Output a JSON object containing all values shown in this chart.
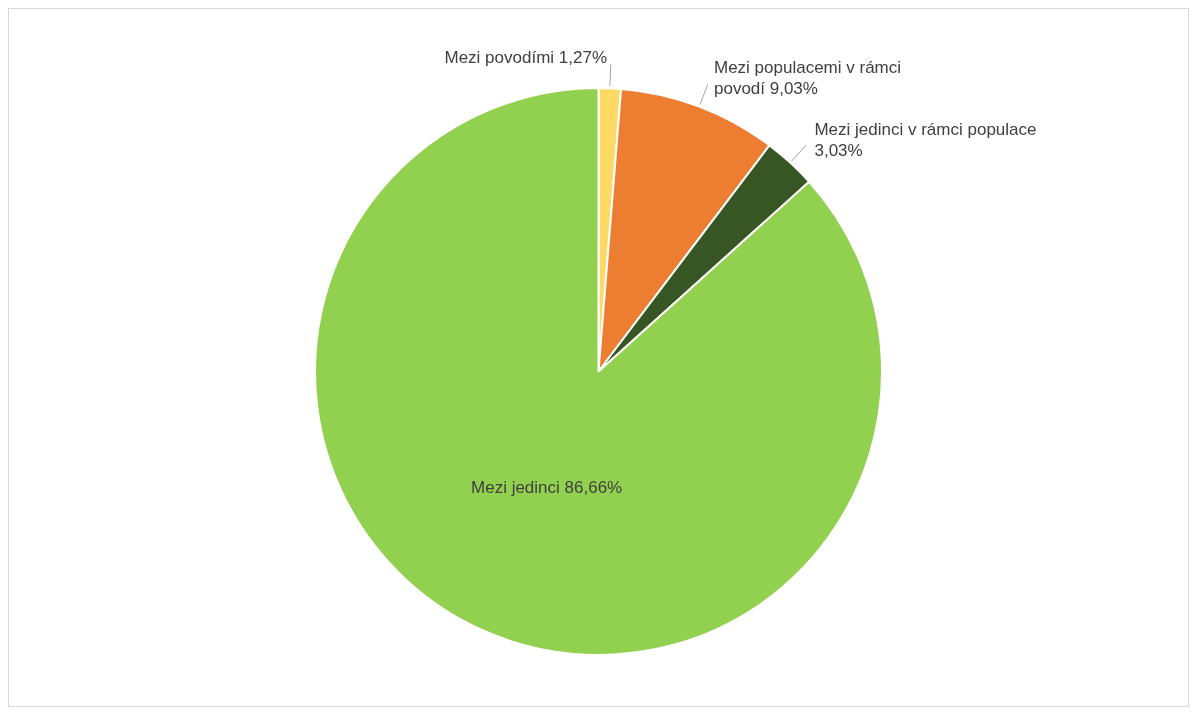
{
  "chart_data": {
    "type": "pie",
    "categories": [
      "Mezi povodími",
      "Mezi populacemi v rámci povodí",
      "Mezi jedinci v rámci populace",
      "Mezi jedinci"
    ],
    "values": [
      1.27,
      9.03,
      3.03,
      86.66
    ],
    "value_labels": [
      "1,27%",
      "9,03%",
      "3,03%",
      "86,66%"
    ],
    "colors": [
      "#ffd966",
      "#ed7d31",
      "#375623",
      "#92d050"
    ],
    "legend": false
  }
}
